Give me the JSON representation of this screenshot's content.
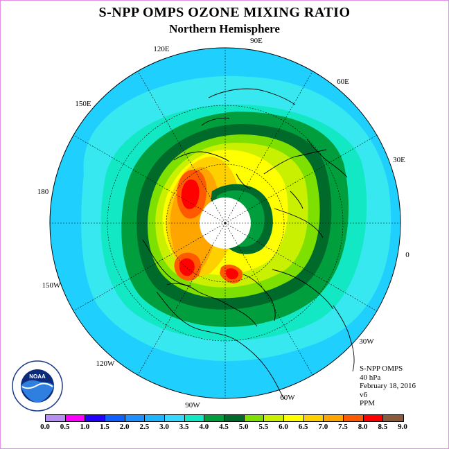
{
  "title": "S-NPP OMPS OZONE MIXING RATIO",
  "subtitle": "Northern Hemisphere",
  "longitude_labels": [
    {
      "id": "0",
      "text": "0"
    },
    {
      "id": "30E",
      "text": "30E"
    },
    {
      "id": "60E",
      "text": "60E"
    },
    {
      "id": "90E",
      "text": "90E"
    },
    {
      "id": "120E",
      "text": "120E"
    },
    {
      "id": "150E",
      "text": "150E"
    },
    {
      "id": "180",
      "text": "180"
    },
    {
      "id": "150W",
      "text": "150W"
    },
    {
      "id": "120W",
      "text": "120W"
    },
    {
      "id": "90W",
      "text": "90W"
    },
    {
      "id": "60W",
      "text": "60W"
    },
    {
      "id": "30W",
      "text": "30W"
    }
  ],
  "info_block": {
    "instrument": "S-NPP OMPS",
    "level": "40 hPa",
    "date": "February 18, 2016",
    "version": "v6",
    "units": "PPM"
  },
  "colorbar": {
    "ticks": [
      "0.0",
      "0.5",
      "1.0",
      "1.5",
      "2.0",
      "2.5",
      "3.0",
      "3.5",
      "4.0",
      "4.5",
      "5.0",
      "5.5",
      "6.0",
      "6.5",
      "7.0",
      "7.5",
      "8.0",
      "8.5",
      "9.0"
    ],
    "colors": [
      "#b58ff2",
      "#e0a8f0",
      "#ff00ff",
      "#2400ff",
      "#0f5fff",
      "#1e90ff",
      "#1fb4ff",
      "#37d8ff",
      "#12e8c4",
      "#009e3c",
      "#006a2a",
      "#7ee000",
      "#c8f000",
      "#ffff00",
      "#ffd000",
      "#ffa500",
      "#ff5a00",
      "#ff0000",
      "#8b5a3a"
    ]
  },
  "logo": {
    "text": "NOAA",
    "ring_text": "NATIONAL OCEANIC AND ATMOSPHERIC ADMINISTRATION · U.S. DEPARTMENT OF COMMERCE"
  },
  "map_colors": {
    "ocean_ring": "#1fd0ff",
    "band_3_5": "#37e8f0",
    "band_4_0": "#12e8c4",
    "band_4_5": "#009e3c",
    "band_5_0": "#006a2a",
    "band_5_5": "#7ee000",
    "band_6_0": "#c8f000",
    "band_6_5": "#ffff00",
    "band_7_0": "#ffd000",
    "band_7_5": "#ffa500",
    "band_8_0": "#ff5a00",
    "band_8_5": "#ff0000",
    "pole_void": "#ffffff"
  }
}
